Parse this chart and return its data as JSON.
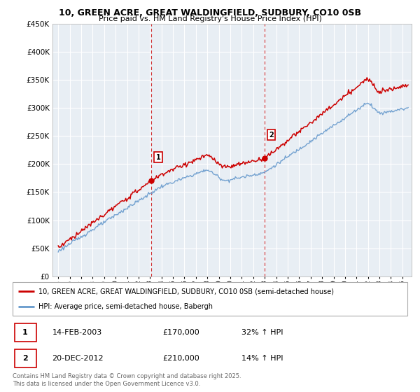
{
  "title": "10, GREEN ACRE, GREAT WALDINGFIELD, SUDBURY, CO10 0SB",
  "subtitle": "Price paid vs. HM Land Registry's House Price Index (HPI)",
  "legend_line1": "10, GREEN ACRE, GREAT WALDINGFIELD, SUDBURY, CO10 0SB (semi-detached house)",
  "legend_line2": "HPI: Average price, semi-detached house, Babergh",
  "footnote": "Contains HM Land Registry data © Crown copyright and database right 2025.\nThis data is licensed under the Open Government Licence v3.0.",
  "sale1_date": "14-FEB-2003",
  "sale1_price": "£170,000",
  "sale1_hpi": "32% ↑ HPI",
  "sale2_date": "20-DEC-2012",
  "sale2_price": "£210,000",
  "sale2_hpi": "14% ↑ HPI",
  "red_color": "#cc0000",
  "blue_color": "#6699cc",
  "grid_color": "#dddddd",
  "chart_bg": "#e8eef4",
  "ylim": [
    0,
    450000
  ],
  "yticks": [
    0,
    50000,
    100000,
    150000,
    200000,
    250000,
    300000,
    350000,
    400000,
    450000
  ],
  "sale1_year": 2003.12,
  "sale2_year": 2012.97,
  "sale1_value": 170000,
  "sale2_value": 210000,
  "xmin": 1994.5,
  "xmax": 2025.8
}
